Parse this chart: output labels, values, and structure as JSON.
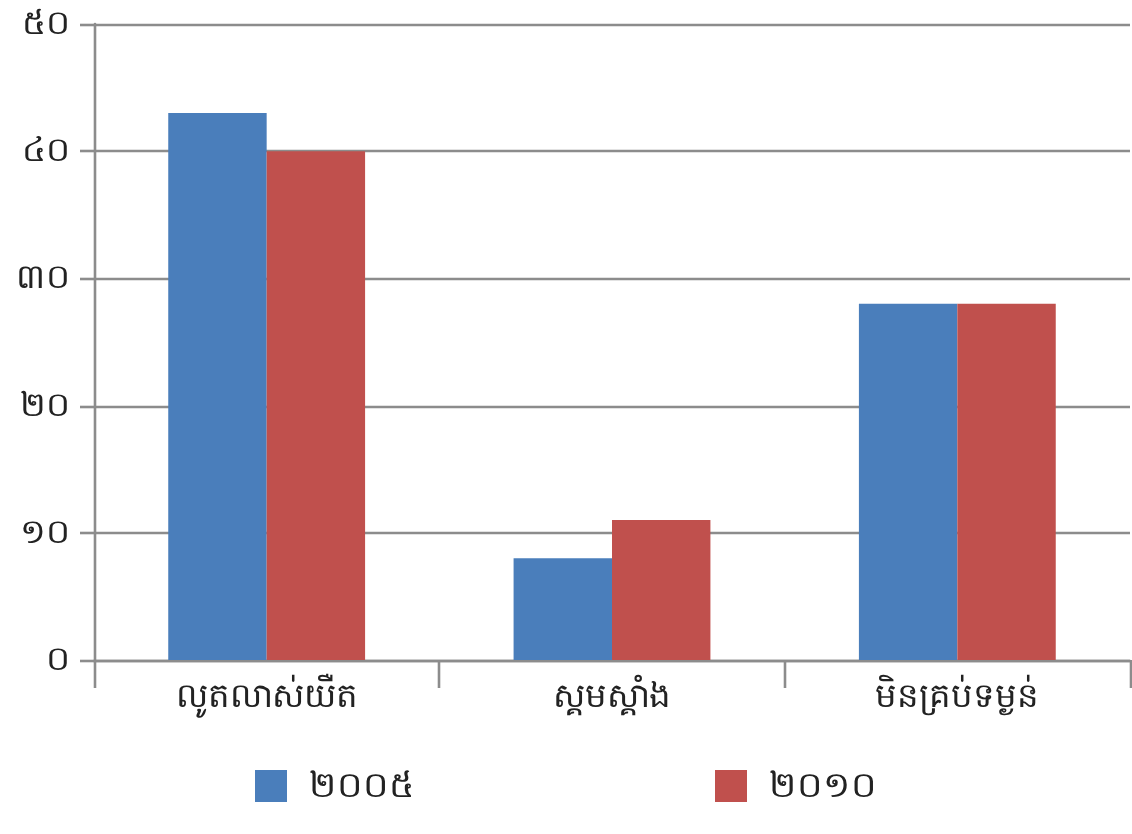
{
  "chart_data": {
    "type": "bar",
    "categories": [
      "លូតលាស់យឺត",
      "ស្គមស្គាំង",
      "មិនគ្រប់ទម្ងន់"
    ],
    "series": [
      {
        "name": "២០០៥",
        "color": "#4a7ebb",
        "values": [
          43,
          8,
          28
        ]
      },
      {
        "name": "២០១០",
        "color": "#c0504d",
        "values": [
          40,
          11,
          28
        ]
      }
    ],
    "ylim": [
      0,
      50
    ],
    "yticks": [
      {
        "value": 0,
        "label": "០"
      },
      {
        "value": 10,
        "label": "១០"
      },
      {
        "value": 20,
        "label": "២០"
      },
      {
        "value": 30,
        "label": "៣០"
      },
      {
        "value": 40,
        "label": "៤០"
      },
      {
        "value": 50,
        "label": "៥០"
      }
    ],
    "grid": "y",
    "legend": "bottom"
  }
}
